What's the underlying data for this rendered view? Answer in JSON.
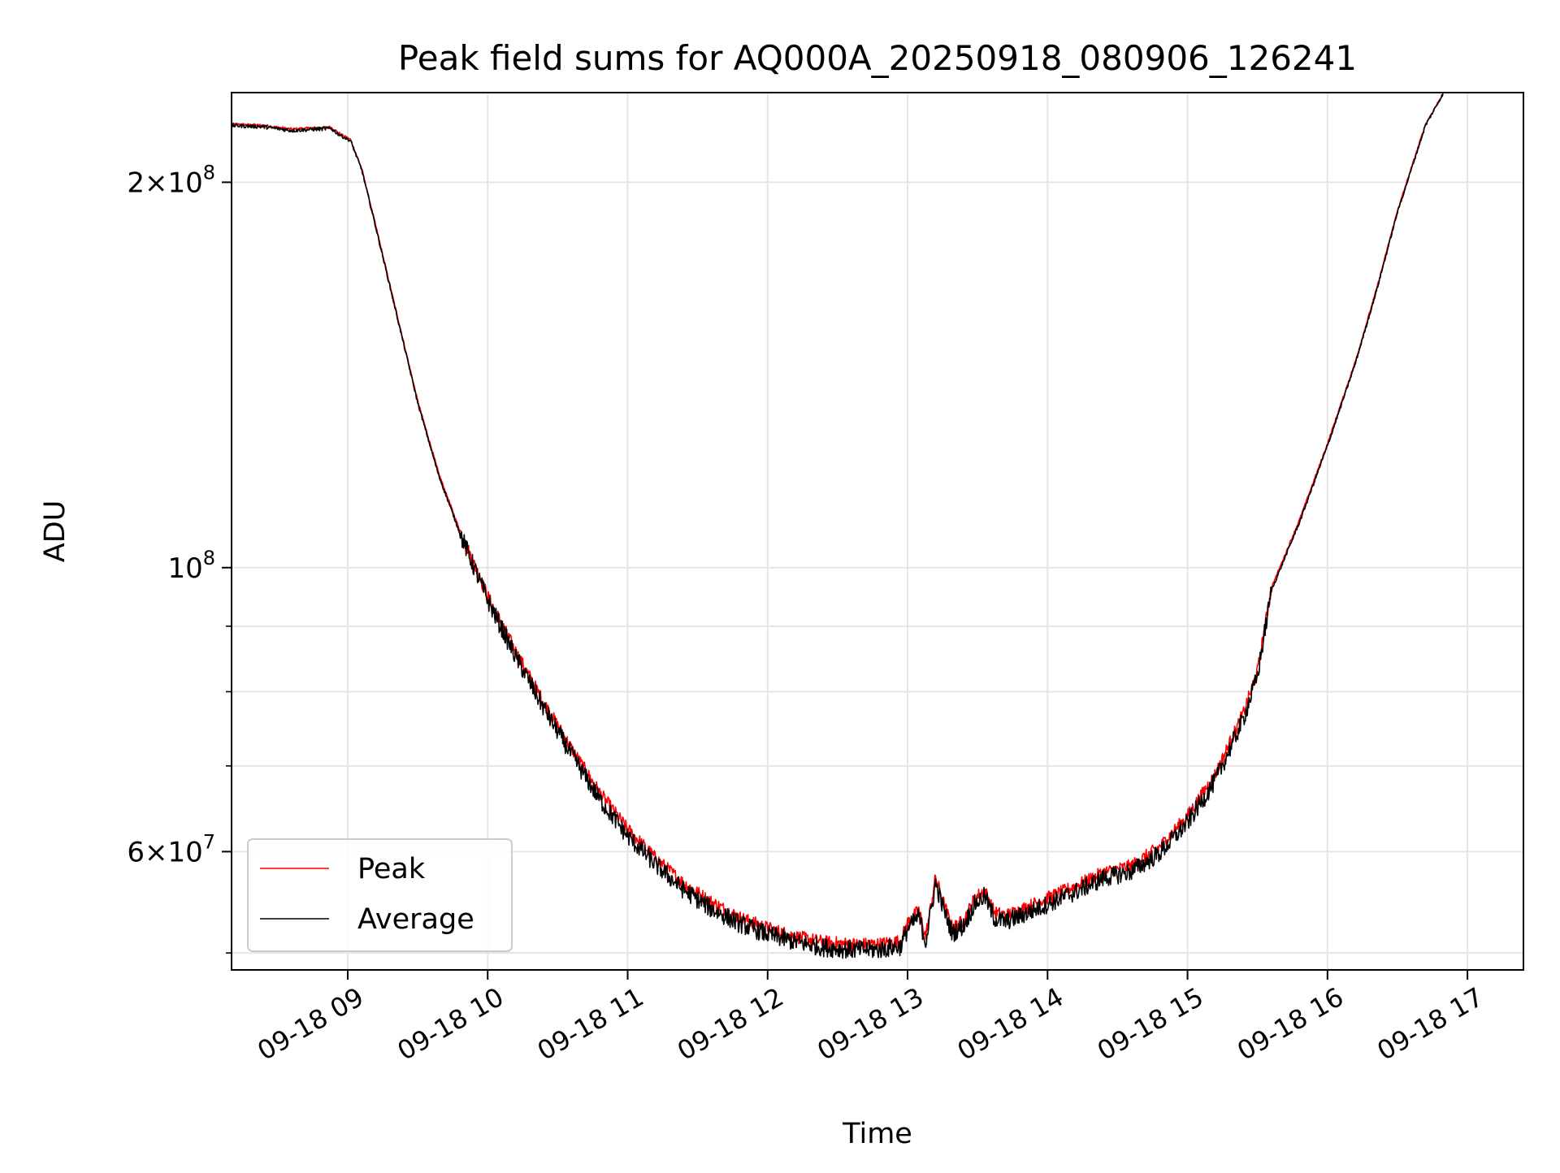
{
  "chart_data": {
    "type": "line",
    "title": "Peak field sums for AQ000A_20250918_080906_126241",
    "xlabel": "Time",
    "ylabel": "ADU",
    "yscale": "log",
    "x_unit": "hours since 09-18 00:00",
    "xlim": [
      8.17,
      17.4
    ],
    "ylim": [
      48500000,
      235000000
    ],
    "grid": true,
    "legend_position": "lower-left",
    "x_ticks": [
      {
        "value": 9,
        "label": "09-18 09"
      },
      {
        "value": 10,
        "label": "09-18 10"
      },
      {
        "value": 11,
        "label": "09-18 11"
      },
      {
        "value": 12,
        "label": "09-18 12"
      },
      {
        "value": 13,
        "label": "09-18 13"
      },
      {
        "value": 14,
        "label": "09-18 14"
      },
      {
        "value": 15,
        "label": "09-18 15"
      },
      {
        "value": 16,
        "label": "09-18 16"
      },
      {
        "value": 17,
        "label": "09-18 17"
      }
    ],
    "y_major_ticks": [
      {
        "value": 200000000,
        "mantissa": "2",
        "exponent": "8"
      },
      {
        "value": 100000000,
        "mantissa": "",
        "exponent": "8"
      },
      {
        "value": 60000000,
        "mantissa": "6",
        "exponent": "7"
      }
    ],
    "y_minor_ticks": [
      50000000,
      70000000,
      80000000,
      90000000
    ],
    "series": [
      {
        "name": "Peak",
        "color": "#ff0000",
        "x": [
          8.17,
          8.4,
          8.6,
          8.75,
          8.88,
          8.95,
          9.02,
          9.1,
          9.2,
          9.35,
          9.5,
          9.65,
          9.8,
          10.0,
          10.2,
          10.4,
          10.6,
          10.8,
          11.0,
          11.2,
          11.4,
          11.6,
          11.8,
          12.0,
          12.2,
          12.4,
          12.6,
          12.8,
          12.95,
          13.0,
          13.08,
          13.13,
          13.2,
          13.25,
          13.32,
          13.4,
          13.48,
          13.55,
          13.62,
          13.7,
          13.8,
          14.0,
          14.2,
          14.4,
          14.6,
          14.8,
          15.0,
          15.2,
          15.4,
          15.5,
          15.6,
          15.8,
          16.0,
          16.2,
          16.35,
          16.5,
          16.7,
          16.83
        ],
        "y": [
          222000000,
          221500000,
          220000000,
          220500000,
          220800000,
          218000000,
          216000000,
          205000000,
          185000000,
          158000000,
          135000000,
          118500000,
          107000000,
          95000000,
          86000000,
          78500000,
          72200000,
          66700000,
          62500000,
          59300000,
          56700000,
          54800000,
          53300000,
          52300000,
          51500000,
          51000000,
          50800000,
          50800000,
          51100000,
          52800000,
          54000000,
          51500000,
          57300000,
          55000000,
          52300000,
          53000000,
          55200000,
          56000000,
          53800000,
          53500000,
          54000000,
          55200000,
          56400000,
          57800000,
          58500000,
          60500000,
          64000000,
          69000000,
          77000000,
          83000000,
          96500000,
          109000000,
          125000000,
          145000000,
          165000000,
          190000000,
          222000000,
          235000000
        ]
      },
      {
        "name": "Average",
        "color": "#000000",
        "x": [
          8.17,
          8.4,
          8.6,
          8.75,
          8.88,
          8.95,
          9.02,
          9.1,
          9.2,
          9.35,
          9.5,
          9.65,
          9.8,
          10.0,
          10.2,
          10.4,
          10.6,
          10.8,
          11.0,
          11.2,
          11.4,
          11.6,
          11.8,
          12.0,
          12.2,
          12.4,
          12.6,
          12.8,
          12.95,
          13.0,
          13.08,
          13.13,
          13.2,
          13.25,
          13.32,
          13.4,
          13.48,
          13.55,
          13.62,
          13.7,
          13.8,
          14.0,
          14.2,
          14.4,
          14.6,
          14.8,
          15.0,
          15.2,
          15.4,
          15.5,
          15.6,
          15.8,
          16.0,
          16.2,
          16.35,
          16.5,
          16.7,
          16.83
        ],
        "y": [
          221500000,
          221000000,
          219500000,
          220000000,
          220300000,
          217500000,
          215500000,
          204500000,
          184500000,
          157500000,
          134500000,
          118000000,
          106500000,
          94300000,
          85200000,
          77700000,
          71400000,
          65900000,
          61700000,
          58600000,
          56000000,
          54100000,
          52700000,
          51700000,
          51000000,
          50500000,
          50300000,
          50300000,
          50600000,
          52200000,
          53400000,
          51000000,
          56700000,
          54400000,
          51800000,
          52500000,
          54600000,
          55400000,
          53200000,
          52900000,
          53400000,
          54600000,
          55800000,
          57200000,
          57900000,
          59800000,
          63200000,
          68200000,
          76200000,
          82300000,
          96000000,
          108500000,
          124500000,
          144500000,
          164500000,
          189500000,
          221500000,
          235000000
        ]
      }
    ]
  }
}
